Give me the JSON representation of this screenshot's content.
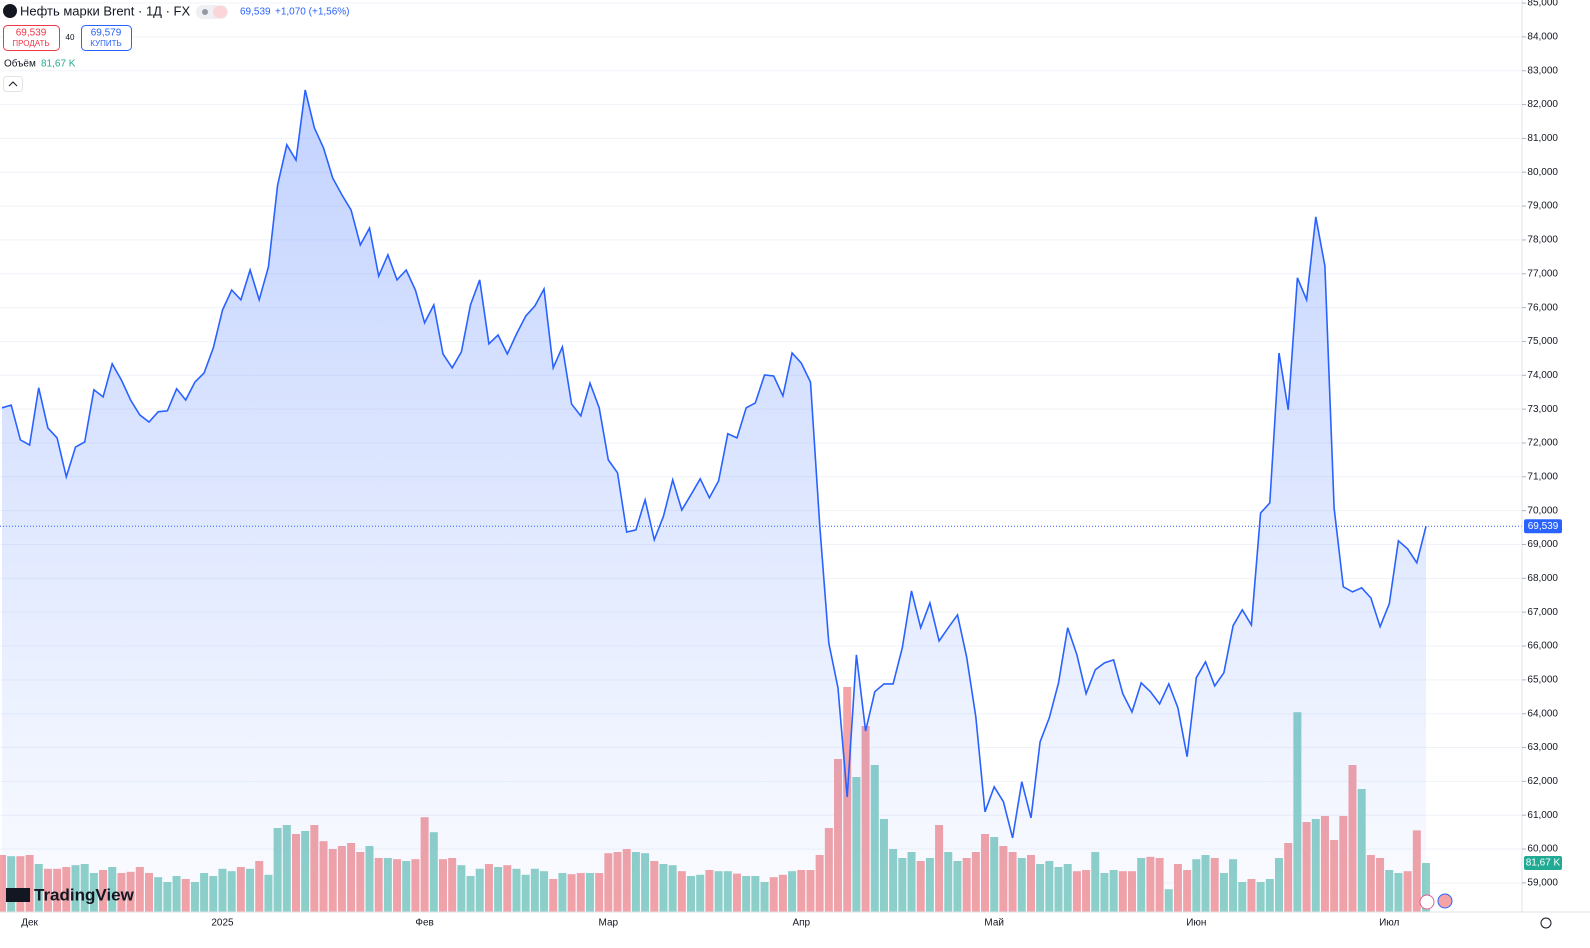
{
  "chart_data": {
    "type": "line",
    "title": "Нефть марки Brent · 1Д · FX",
    "last_price_label": "69,539",
    "change": "+1,070 (+1,56%)",
    "color": "#2962ff",
    "grid": true,
    "categories": [
      null,
      null,
      null,
      "Дек",
      null,
      null,
      null,
      null,
      null,
      null,
      null,
      null,
      null,
      null,
      null,
      null,
      null,
      null,
      null,
      null,
      null,
      null,
      null,
      null,
      "2025",
      null,
      null,
      null,
      null,
      null,
      null,
      null,
      null,
      null,
      null,
      null,
      null,
      null,
      null,
      null,
      null,
      null,
      null,
      null,
      null,
      null,
      "Фев",
      null,
      null,
      null,
      null,
      null,
      null,
      null,
      null,
      null,
      null,
      null,
      null,
      null,
      null,
      null,
      null,
      null,
      null,
      null,
      "Мар",
      null,
      null,
      null,
      null,
      null,
      null,
      null,
      null,
      null,
      null,
      null,
      null,
      null,
      null,
      null,
      null,
      null,
      null,
      null,
      null,
      "Апр",
      null,
      null,
      null,
      null,
      null,
      null,
      null,
      null,
      null,
      null,
      null,
      null,
      null,
      null,
      null,
      null,
      null,
      null,
      null,
      null,
      "Май",
      null,
      null,
      null,
      null,
      null,
      null,
      null,
      null,
      null,
      null,
      null,
      null,
      null,
      null,
      null,
      null,
      null,
      null,
      null,
      null,
      null,
      "Июн",
      null,
      null,
      null,
      null,
      null,
      null,
      null,
      null,
      null,
      null,
      null,
      null,
      null,
      null,
      null,
      null,
      null,
      null,
      null,
      null,
      "Июл",
      null,
      null,
      null,
      null
    ],
    "values": [
      73.04,
      73.12,
      72.09,
      71.94,
      73.63,
      72.44,
      72.15,
      71.0,
      71.88,
      72.03,
      73.57,
      73.36,
      74.34,
      73.86,
      73.27,
      72.83,
      72.62,
      72.92,
      72.95,
      73.6,
      73.27,
      73.8,
      74.07,
      74.81,
      75.93,
      76.52,
      76.23,
      77.11,
      76.23,
      77.2,
      79.62,
      80.81,
      80.36,
      82.43,
      81.31,
      80.72,
      79.83,
      79.33,
      78.88,
      77.85,
      78.35,
      76.93,
      77.56,
      76.82,
      77.11,
      76.52,
      75.55,
      76.08,
      74.63,
      74.22,
      74.69,
      76.08,
      76.82,
      74.93,
      75.19,
      74.63,
      75.22,
      75.75,
      76.05,
      76.55,
      74.22,
      74.84,
      73.15,
      72.8,
      73.77,
      73.04,
      71.5,
      71.12,
      69.37,
      69.43,
      70.32,
      69.14,
      69.84,
      70.91,
      70.02,
      70.47,
      70.94,
      70.38,
      70.88,
      72.27,
      72.15,
      73.04,
      73.18,
      74.01,
      73.98,
      73.39,
      74.66,
      74.36,
      73.8,
      69.58,
      66.09,
      64.76,
      61.54,
      65.74,
      63.49,
      64.65,
      64.88,
      64.88,
      65.95,
      67.63,
      66.54,
      67.27,
      66.15,
      66.54,
      66.92,
      65.68,
      63.91,
      61.1,
      61.84,
      61.4,
      60.33,
      61.99,
      60.92,
      63.17,
      63.88,
      64.91,
      66.54,
      65.74,
      64.59,
      65.3,
      65.5,
      65.59,
      64.59,
      64.05,
      64.91,
      64.65,
      64.29,
      64.88,
      64.17,
      62.73,
      65.06,
      65.53,
      64.82,
      65.21,
      66.6,
      67.07,
      66.62,
      69.93,
      70.23,
      74.66,
      72.98,
      76.88,
      76.23,
      78.68,
      77.23,
      70.08,
      67.75,
      67.6,
      67.72,
      67.42,
      66.57,
      67.25,
      69.11,
      68.87,
      68.46,
      69.539
    ],
    "volume": {
      "label": "Объём",
      "value_label": "81,67 K",
      "up_color": "#8fd1c8",
      "down_color": "#f4a3a6",
      "values": [
        95,
        93,
        93,
        95,
        80,
        72,
        72,
        75,
        78,
        80,
        65,
        70,
        75,
        65,
        67,
        75,
        65,
        58,
        50,
        60,
        55,
        50,
        65,
        60,
        72,
        68,
        75,
        72,
        85,
        62,
        140,
        145,
        130,
        135,
        145,
        118,
        105,
        110,
        115,
        100,
        110,
        90,
        90,
        88,
        85,
        88,
        158,
        133,
        88,
        90,
        78,
        60,
        72,
        80,
        75,
        78,
        72,
        62,
        72,
        68,
        55,
        65,
        63,
        65,
        65,
        65,
        98,
        100,
        105,
        100,
        98,
        85,
        80,
        78,
        68,
        60,
        62,
        70,
        68,
        68,
        64,
        60,
        60,
        50,
        58,
        62,
        68,
        70,
        70,
        95,
        140,
        255,
        375,
        225,
        310,
        245,
        155,
        105,
        90,
        100,
        85,
        90,
        145,
        100,
        85,
        90,
        100,
        130,
        125,
        110,
        100,
        90,
        95,
        80,
        85,
        75,
        80,
        68,
        70,
        100,
        65,
        70,
        68,
        68,
        90,
        92,
        90,
        38,
        80,
        70,
        88,
        95,
        90,
        65,
        88,
        50,
        55,
        50,
        55,
        90,
        115,
        333,
        150,
        155,
        160,
        120,
        160,
        245,
        205,
        95,
        90,
        70,
        65,
        68,
        136,
        81.67
      ]
    },
    "ylim": [
      58.14,
      85.09
    ],
    "yticks": [
      {
        "value": 85,
        "label": "85,000"
      },
      {
        "value": 84,
        "label": "84,000"
      },
      {
        "value": 83,
        "label": "83,000"
      },
      {
        "value": 82,
        "label": "82,000"
      },
      {
        "value": 81,
        "label": "81,000"
      },
      {
        "value": 80,
        "label": "80,000"
      },
      {
        "value": 79,
        "label": "79,000"
      },
      {
        "value": 78,
        "label": "78,000"
      },
      {
        "value": 77,
        "label": "77,000"
      },
      {
        "value": 76,
        "label": "76,000"
      },
      {
        "value": 75,
        "label": "75,000"
      },
      {
        "value": 74,
        "label": "74,000"
      },
      {
        "value": 73,
        "label": "73,000"
      },
      {
        "value": 72,
        "label": "72,000"
      },
      {
        "value": 71,
        "label": "71,000"
      },
      {
        "value": 70,
        "label": "70,000"
      },
      {
        "value": 69,
        "label": "69,000"
      },
      {
        "value": 68,
        "label": "68,000"
      },
      {
        "value": 67,
        "label": "67,000"
      },
      {
        "value": 66,
        "label": "66,000"
      },
      {
        "value": 65,
        "label": "65,000"
      },
      {
        "value": 64,
        "label": "64,000"
      },
      {
        "value": 63,
        "label": "63,000"
      },
      {
        "value": 62,
        "label": "62,000"
      },
      {
        "value": 61,
        "label": "61,000"
      },
      {
        "value": 60,
        "label": "60,000"
      },
      {
        "value": 59,
        "label": "59,000"
      }
    ]
  },
  "trade": {
    "sell_price": "69,539",
    "sell_label": "ПРОДАТЬ",
    "spread": "40",
    "buy_price": "69,579",
    "buy_label": "КУПИТЬ"
  },
  "branding": "TradingView"
}
